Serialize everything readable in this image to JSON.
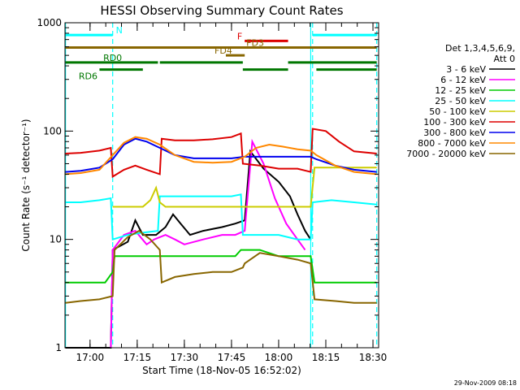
{
  "chart_data": {
    "type": "line",
    "title": "HESSI Observing Summary Count Rates",
    "xlabel": "Start Time (18-Nov-05 16:52:02)",
    "ylabel": "Count Rate (s⁻¹ detector⁻¹)",
    "footer": "29-Nov-2009 08:18",
    "x_tick_labels": [
      "17:00",
      "17:15",
      "17:30",
      "17:45",
      "18:00",
      "18:15",
      "18:30"
    ],
    "x_ticks_min": [
      17.0,
      17.25,
      17.5,
      17.75,
      18.0,
      18.25,
      18.5
    ],
    "xlim": [
      16.8672,
      18.53
    ],
    "y_tick_labels": [
      "1",
      "10",
      "100",
      "1000"
    ],
    "y_ticks": [
      1,
      10,
      100,
      1000
    ],
    "ylim": [
      1,
      1000
    ],
    "y_scale": "log",
    "legend_header": [
      "Det 1,3,4,5,6,9,",
      "Att 0"
    ],
    "legend_position": "right",
    "series": [
      {
        "name": "3 - 6 keV",
        "color": "#000000",
        "points": [
          [
            16.87,
            1.0
          ],
          [
            17.11,
            1.0
          ],
          [
            17.12,
            8.0
          ],
          [
            17.2,
            9.5
          ],
          [
            17.24,
            15.0
          ],
          [
            17.28,
            11.0
          ],
          [
            17.35,
            11.0
          ],
          [
            17.4,
            13.0
          ],
          [
            17.44,
            17.0
          ],
          [
            17.48,
            14.0
          ],
          [
            17.53,
            11.0
          ],
          [
            17.6,
            12.0
          ],
          [
            17.7,
            13.0
          ],
          [
            17.77,
            14.0
          ],
          [
            17.82,
            15.0
          ],
          [
            17.85,
            65.0
          ],
          [
            17.92,
            45.0
          ],
          [
            18.0,
            34.0
          ],
          [
            18.06,
            25.0
          ],
          [
            18.1,
            17.0
          ],
          [
            18.14,
            12.0
          ],
          [
            18.17,
            10.0
          ]
        ]
      },
      {
        "name": "6 - 12 keV",
        "color": "#ff00ff",
        "points": [
          [
            17.11,
            1.0
          ],
          [
            17.12,
            8.0
          ],
          [
            17.18,
            11.0
          ],
          [
            17.24,
            12.0
          ],
          [
            17.3,
            9.0
          ],
          [
            17.34,
            10.0
          ],
          [
            17.4,
            11.0
          ],
          [
            17.45,
            10.0
          ],
          [
            17.5,
            9.0
          ],
          [
            17.6,
            10.0
          ],
          [
            17.7,
            11.0
          ],
          [
            17.77,
            11.0
          ],
          [
            17.82,
            12.0
          ],
          [
            17.86,
            80.0
          ],
          [
            17.92,
            50.0
          ],
          [
            17.98,
            24.0
          ],
          [
            18.04,
            14.0
          ],
          [
            18.1,
            10.0
          ],
          [
            18.14,
            8.0
          ]
        ]
      },
      {
        "name": "12 - 25 keV",
        "color": "#00cc00",
        "points": [
          [
            16.87,
            4.0
          ],
          [
            16.95,
            4.0
          ],
          [
            17.03,
            4.0
          ],
          [
            17.08,
            4.0
          ],
          [
            17.12,
            5.0
          ],
          [
            17.13,
            7.0
          ],
          [
            17.2,
            7.0
          ],
          [
            17.27,
            7.0
          ],
          [
            17.36,
            7.0
          ],
          [
            17.5,
            7.0
          ],
          [
            17.6,
            7.0
          ],
          [
            17.7,
            7.0
          ],
          [
            17.77,
            7.0
          ],
          [
            17.8,
            8.0
          ],
          [
            17.9,
            8.0
          ],
          [
            18.0,
            7.0
          ],
          [
            18.1,
            7.0
          ],
          [
            18.17,
            7.0
          ],
          [
            18.19,
            4.0
          ],
          [
            18.28,
            4.0
          ],
          [
            18.4,
            4.0
          ],
          [
            18.52,
            4.0
          ]
        ]
      },
      {
        "name": "25 - 50 keV",
        "color": "#00ffff",
        "points": [
          [
            16.87,
            22.0
          ],
          [
            16.95,
            22.0
          ],
          [
            17.05,
            23.0
          ],
          [
            17.11,
            24.0
          ],
          [
            17.12,
            10.0
          ],
          [
            17.2,
            11.0
          ],
          [
            17.27,
            11.5
          ],
          [
            17.36,
            12.0
          ],
          [
            17.37,
            25.0
          ],
          [
            17.45,
            25.0
          ],
          [
            17.55,
            25.0
          ],
          [
            17.65,
            25.0
          ],
          [
            17.75,
            25.0
          ],
          [
            17.8,
            26.0
          ],
          [
            17.81,
            11.0
          ],
          [
            17.9,
            11.0
          ],
          [
            18.0,
            11.0
          ],
          [
            18.1,
            10.0
          ],
          [
            18.17,
            10.0
          ],
          [
            18.18,
            22.0
          ],
          [
            18.28,
            23.0
          ],
          [
            18.4,
            22.0
          ],
          [
            18.52,
            21.0
          ]
        ]
      },
      {
        "name": "50 - 100 keV",
        "color": "#cccc00",
        "points": [
          [
            17.12,
            20.0
          ],
          [
            17.2,
            20.0
          ],
          [
            17.28,
            20.0
          ],
          [
            17.32,
            23.0
          ],
          [
            17.35,
            30.0
          ],
          [
            17.37,
            22.0
          ],
          [
            17.4,
            20.0
          ],
          [
            17.5,
            20.0
          ],
          [
            17.6,
            20.0
          ],
          [
            17.7,
            20.0
          ],
          [
            17.8,
            20.0
          ],
          [
            17.81,
            20.0
          ],
          [
            17.9,
            20.0
          ],
          [
            18.0,
            20.0
          ],
          [
            18.1,
            20.0
          ],
          [
            18.17,
            20.0
          ],
          [
            18.19,
            46.0
          ],
          [
            18.3,
            46.0
          ],
          [
            18.4,
            46.0
          ],
          [
            18.52,
            46.0
          ]
        ]
      },
      {
        "name": "100 - 300 keV",
        "color": "#dd0000",
        "points": [
          [
            16.87,
            62.0
          ],
          [
            16.95,
            63.0
          ],
          [
            17.05,
            66.0
          ],
          [
            17.11,
            70.0
          ],
          [
            17.12,
            38.0
          ],
          [
            17.18,
            44.0
          ],
          [
            17.24,
            48.0
          ],
          [
            17.3,
            44.0
          ],
          [
            17.37,
            40.0
          ],
          [
            17.38,
            85.0
          ],
          [
            17.45,
            82.0
          ],
          [
            17.55,
            82.0
          ],
          [
            17.65,
            84.0
          ],
          [
            17.75,
            88.0
          ],
          [
            17.8,
            95.0
          ],
          [
            17.81,
            50.0
          ],
          [
            17.9,
            48.0
          ],
          [
            18.0,
            45.0
          ],
          [
            18.1,
            45.0
          ],
          [
            18.17,
            42.0
          ],
          [
            18.18,
            105.0
          ],
          [
            18.25,
            100.0
          ],
          [
            18.32,
            80.0
          ],
          [
            18.4,
            65.0
          ],
          [
            18.52,
            62.0
          ]
        ]
      },
      {
        "name": "300 - 800 keV",
        "color": "#0000ee",
        "points": [
          [
            16.87,
            42.0
          ],
          [
            16.95,
            43.0
          ],
          [
            17.05,
            46.0
          ],
          [
            17.12,
            55.0
          ],
          [
            17.18,
            75.0
          ],
          [
            17.24,
            85.0
          ],
          [
            17.3,
            80.0
          ],
          [
            17.37,
            70.0
          ],
          [
            17.45,
            60.0
          ],
          [
            17.55,
            56.0
          ],
          [
            17.65,
            56.0
          ],
          [
            17.75,
            56.0
          ],
          [
            17.82,
            58.0
          ],
          [
            17.9,
            58.0
          ],
          [
            18.0,
            58.0
          ],
          [
            18.1,
            58.0
          ],
          [
            18.17,
            58.0
          ],
          [
            18.2,
            55.0
          ],
          [
            18.3,
            48.0
          ],
          [
            18.4,
            44.0
          ],
          [
            18.52,
            42.0
          ]
        ]
      },
      {
        "name": "800 - 7000 keV",
        "color": "#ff8800",
        "points": [
          [
            16.87,
            40.0
          ],
          [
            16.95,
            41.0
          ],
          [
            17.05,
            44.0
          ],
          [
            17.12,
            60.0
          ],
          [
            17.18,
            78.0
          ],
          [
            17.24,
            88.0
          ],
          [
            17.3,
            85.0
          ],
          [
            17.37,
            75.0
          ],
          [
            17.45,
            60.0
          ],
          [
            17.55,
            52.0
          ],
          [
            17.65,
            51.0
          ],
          [
            17.75,
            52.0
          ],
          [
            17.82,
            58.0
          ],
          [
            17.88,
            70.0
          ],
          [
            17.95,
            75.0
          ],
          [
            18.02,
            72.0
          ],
          [
            18.1,
            68.0
          ],
          [
            18.17,
            66.0
          ],
          [
            18.2,
            60.0
          ],
          [
            18.3,
            48.0
          ],
          [
            18.4,
            42.0
          ],
          [
            18.52,
            40.0
          ]
        ]
      },
      {
        "name": "7000 - 20000 keV",
        "color": "#886600",
        "points": [
          [
            16.87,
            2.6
          ],
          [
            16.95,
            2.7
          ],
          [
            17.05,
            2.8
          ],
          [
            17.12,
            3.0
          ],
          [
            17.13,
            8.0
          ],
          [
            17.2,
            10.5
          ],
          [
            17.26,
            12.0
          ],
          [
            17.32,
            10.0
          ],
          [
            17.37,
            8.0
          ],
          [
            17.38,
            4.0
          ],
          [
            17.45,
            4.5
          ],
          [
            17.55,
            4.8
          ],
          [
            17.65,
            5.0
          ],
          [
            17.75,
            5.0
          ],
          [
            17.81,
            5.5
          ],
          [
            17.82,
            6.0
          ],
          [
            17.9,
            7.5
          ],
          [
            18.0,
            7.0
          ],
          [
            18.1,
            6.5
          ],
          [
            18.17,
            6.0
          ],
          [
            18.19,
            2.8
          ],
          [
            18.3,
            2.7
          ],
          [
            18.4,
            2.6
          ],
          [
            18.52,
            2.6
          ]
        ]
      }
    ],
    "status_bars": [
      {
        "label": "N",
        "color": "#00ffff",
        "level": 770,
        "segments": [
          [
            16.87,
            17.12
          ],
          [
            18.18,
            18.52
          ]
        ]
      },
      {
        "label": "F",
        "color": "#dd0000",
        "level": 680,
        "segments": [
          [
            17.82,
            18.05
          ]
        ]
      },
      {
        "label": "FD3",
        "color": "#886600",
        "level": 590,
        "segments": [
          [
            16.87,
            18.52
          ]
        ]
      },
      {
        "label": "FD4",
        "color": "#886600",
        "level": 500,
        "segments": [
          [
            17.72,
            17.82
          ]
        ]
      },
      {
        "label": "RD0",
        "color": "#007700",
        "level": 430,
        "segments": [
          [
            16.87,
            17.36
          ],
          [
            17.37,
            17.81
          ],
          [
            18.05,
            18.52
          ]
        ]
      },
      {
        "label": "RD6",
        "color": "#007700",
        "level": 370,
        "segments": [
          [
            17.05,
            17.28
          ],
          [
            17.81,
            18.05
          ],
          [
            18.2,
            18.52
          ]
        ]
      }
    ],
    "vertical_markers": [
      {
        "x": 16.87,
        "style": "solid",
        "color": "#00ffff"
      },
      {
        "x": 17.12,
        "style": "dashed",
        "color": "#00ffff"
      },
      {
        "x": 18.17,
        "style": "solid",
        "color": "#00ffff"
      },
      {
        "x": 18.18,
        "style": "dashed",
        "color": "#00ffff"
      },
      {
        "x": 18.52,
        "style": "dashed",
        "color": "#00ffff"
      }
    ]
  }
}
